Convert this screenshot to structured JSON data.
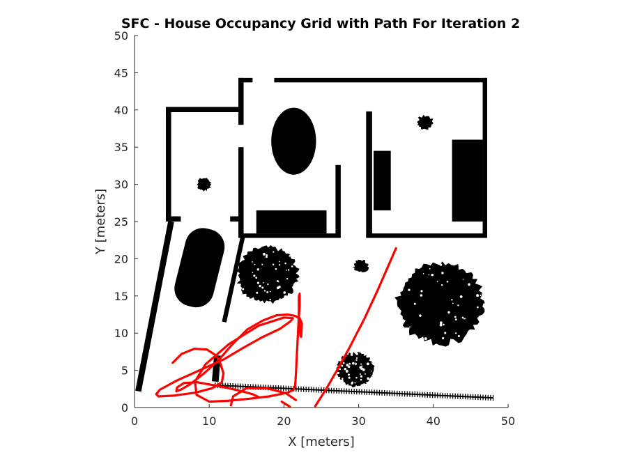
{
  "chart_data": {
    "type": "occupancy-grid-with-path",
    "title": "SFC - House Occupancy Grid with Path For Iteration 2",
    "xlabel": "X [meters]",
    "ylabel": "Y [meters]",
    "xlim": [
      0,
      50
    ],
    "ylim": [
      0,
      50
    ],
    "xticks": [
      0,
      10,
      20,
      30,
      40,
      50
    ],
    "yticks": [
      0,
      5,
      10,
      15,
      20,
      25,
      30,
      35,
      40,
      45,
      50
    ],
    "grid": false,
    "colors": {
      "obstacle": "#000000",
      "path": "#ff0000",
      "axis": "#262626",
      "background": "#ffffff"
    },
    "obstacles": [
      {
        "name": "wall-outer-top-left",
        "shape": "rect",
        "x": [
          13.9,
          15.8
        ],
        "y": [
          43.7,
          44.3
        ]
      },
      {
        "name": "wall-outer-top-right",
        "shape": "rect",
        "x": [
          18.7,
          47.2
        ],
        "y": [
          43.7,
          44.3
        ]
      },
      {
        "name": "wall-outer-right",
        "shape": "rect",
        "x": [
          46.6,
          47.2
        ],
        "y": [
          22.8,
          44.3
        ]
      },
      {
        "name": "wall-bottom-right",
        "shape": "rect",
        "x": [
          31.0,
          47.2
        ],
        "y": [
          22.8,
          23.4
        ]
      },
      {
        "name": "wall-bottom-middle",
        "shape": "rect",
        "x": [
          14.0,
          27.5
        ],
        "y": [
          22.8,
          23.4
        ]
      },
      {
        "name": "wall-left-upper",
        "shape": "rect",
        "x": [
          13.9,
          14.6
        ],
        "y": [
          38.0,
          44.3
        ]
      },
      {
        "name": "wall-left-lower",
        "shape": "rect",
        "x": [
          13.9,
          14.6
        ],
        "y": [
          22.8,
          35.0
        ]
      },
      {
        "name": "wall-middle-divider",
        "shape": "rect",
        "x": [
          26.9,
          27.6
        ],
        "y": [
          22.8,
          32.6
        ]
      },
      {
        "name": "wall-inner-right",
        "shape": "rect",
        "x": [
          31.0,
          31.8
        ],
        "y": [
          22.8,
          39.8
        ]
      },
      {
        "name": "wall-left-room-top",
        "shape": "rect",
        "x": [
          4.2,
          13.9
        ],
        "y": [
          39.7,
          40.4
        ]
      },
      {
        "name": "wall-left-room-side",
        "shape": "rect",
        "x": [
          4.2,
          4.9
        ],
        "y": [
          25.0,
          40.4
        ]
      },
      {
        "name": "wall-left-room-bottom-a",
        "shape": "rect",
        "x": [
          4.2,
          6.2
        ],
        "y": [
          25.0,
          25.7
        ]
      },
      {
        "name": "wall-left-room-bottom-b",
        "shape": "rect",
        "x": [
          12.8,
          13.9
        ],
        "y": [
          25.0,
          25.7
        ]
      },
      {
        "name": "bed",
        "shape": "rect",
        "x": [
          16.3,
          25.7
        ],
        "y": [
          23.4,
          26.5
        ]
      },
      {
        "name": "cabinet-left",
        "shape": "rect",
        "x": [
          32.0,
          34.3
        ],
        "y": [
          26.5,
          34.5
        ]
      },
      {
        "name": "cabinet-right",
        "shape": "rect",
        "x": [
          42.5,
          46.6
        ],
        "y": [
          25.0,
          36.0
        ]
      },
      {
        "name": "table-ellipse",
        "shape": "ellipse",
        "cx": 21.3,
        "cy": 35.8,
        "rx": 3.0,
        "ry": 4.5
      },
      {
        "name": "plant-upper-right",
        "shape": "blob",
        "cx": 38.9,
        "cy": 38.3,
        "r": 1.2
      },
      {
        "name": "plant-left-room",
        "shape": "blob",
        "cx": 9.3,
        "cy": 30.0,
        "r": 1.1
      },
      {
        "name": "plant-center",
        "shape": "blob",
        "cx": 30.3,
        "cy": 19.0,
        "r": 1.1
      },
      {
        "name": "car",
        "shape": "car",
        "cx": 8.7,
        "cy": 18.8,
        "w": 5.3,
        "h": 10.7,
        "angle": 14
      },
      {
        "name": "bush-left",
        "shape": "bush",
        "cx": 17.8,
        "cy": 17.8,
        "r": 4.3
      },
      {
        "name": "tree-right",
        "shape": "bush",
        "cx": 41.0,
        "cy": 14.0,
        "r": 6.2
      },
      {
        "name": "bush-small",
        "shape": "bush",
        "cx": 29.6,
        "cy": 5.1,
        "r": 2.6
      },
      {
        "name": "fence-left",
        "shape": "line",
        "x": [
          0.5,
          4.9
        ],
        "y": [
          2.2,
          25.0
        ],
        "width": 0.8
      },
      {
        "name": "fence-right",
        "shape": "line",
        "x": [
          12.0,
          14.5
        ],
        "y": [
          11.5,
          23.0
        ],
        "width": 0.6
      },
      {
        "name": "post",
        "shape": "line",
        "x": [
          10.8,
          11.1
        ],
        "y": [
          3.5,
          7.0
        ],
        "width": 0.9
      },
      {
        "name": "picket-fence",
        "shape": "fence",
        "x": [
          10.8,
          48.0
        ],
        "y": [
          3.0,
          1.3
        ]
      }
    ],
    "path": {
      "name": "path",
      "x": [
        5.1,
        6.3,
        8.0,
        9.7,
        10.9,
        11.5,
        11.9,
        11.7,
        10.4,
        8.2,
        5.2,
        3.2,
        2.9,
        3.4,
        5.6,
        8.7,
        12.0,
        14.5,
        17.0,
        19.5,
        20.9,
        21.2,
        20.0,
        16.6,
        12.6,
        9.5,
        8.1,
        8.3,
        10.0,
        12.5,
        15.5,
        18.0,
        19.5,
        20.5,
        21.3,
        21.5,
        21.6,
        21.7,
        21.8,
        21.9,
        22.0,
        22.1,
        22.1,
        22.1,
        22.0,
        22.0,
        22.1,
        22.2,
        22.3,
        22.4,
        22.1,
        21.5,
        20.5,
        19.0,
        17.2,
        15.1,
        13.1,
        11.2,
        9.2,
        7.4,
        6.2,
        5.6,
        5.7,
        6.6,
        8.4,
        10.6,
        12.6,
        14.3,
        15.8,
        16.6
      ],
      "y": [
        6.0,
        7.2,
        7.9,
        7.8,
        7.0,
        5.9,
        4.6,
        3.4,
        2.6,
        2.0,
        1.6,
        1.5,
        1.8,
        2.4,
        3.6,
        5.0,
        6.5,
        8.0,
        9.4,
        10.6,
        11.6,
        12.0,
        12.1,
        11.0,
        8.5,
        5.8,
        3.5,
        1.7,
        0.8,
        0.9,
        1.2,
        1.5,
        1.8,
        2.0,
        2.4,
        3.0,
        4.5,
        6.5,
        8.5,
        10.5,
        12.3,
        13.6,
        14.6,
        15.3,
        14.9,
        12.5,
        10.8,
        9.7,
        9.5,
        11.3,
        12.0,
        12.3,
        12.5,
        12.4,
        11.7,
        10.5,
        8.5,
        6.3,
        4.5,
        3.1,
        2.4,
        2.2,
        2.7,
        3.3,
        3.4,
        3.0,
        2.6,
        2.2,
        1.8,
        1.4
      ]
    },
    "path2": {
      "name": "path",
      "x": [
        12.9,
        13.2,
        15.0,
        17.7,
        20.3,
        21.6
      ],
      "y": [
        0.3,
        1.5,
        2.6,
        2.6,
        1.9,
        1.0
      ]
    },
    "path3": {
      "name": "path",
      "x": [
        24.2,
        25.6,
        27.1,
        28.8,
        30.8,
        32.6,
        34.3,
        35.0
      ],
      "y": [
        0.2,
        2.4,
        5.0,
        8.1,
        12.0,
        15.9,
        19.8,
        21.4
      ]
    },
    "path4": {
      "name": "path",
      "x": [
        19.7,
        20.8
      ],
      "y": [
        0.8,
        0.1
      ]
    }
  }
}
